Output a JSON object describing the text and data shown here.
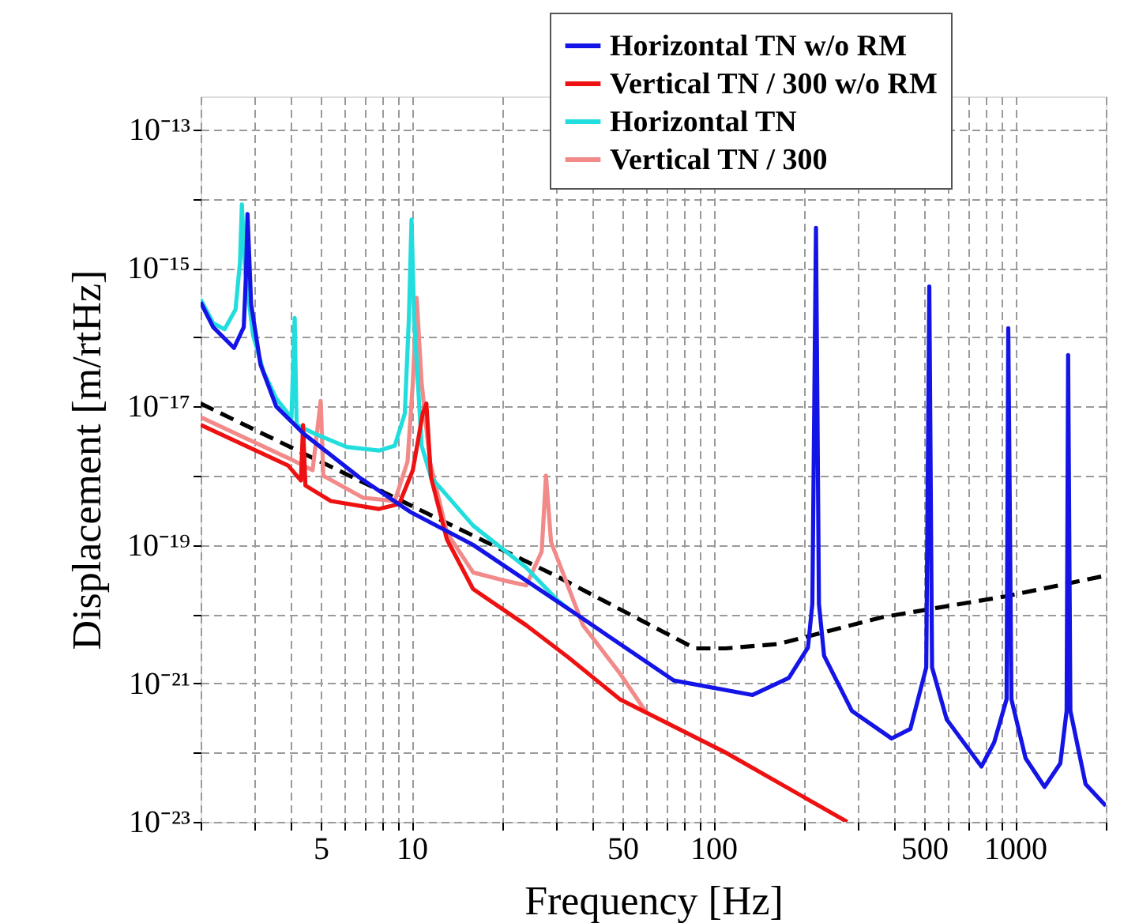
{
  "chart_data": {
    "type": "line",
    "xlabel": "Frequency [Hz]",
    "ylabel": "Displacement [m/rtHz]",
    "log": "xy",
    "grid": true,
    "legend": "top right",
    "xlim": [
      2,
      2000
    ],
    "ylim": [
      1e-23,
      3e-13
    ],
    "xticks": [
      {
        "value": 2,
        "label": null
      },
      {
        "value": 3,
        "label": null
      },
      {
        "value": 4,
        "label": null
      },
      5,
      {
        "value": 6,
        "label": null
      },
      {
        "value": 7,
        "label": null
      },
      {
        "value": 8,
        "label": null
      },
      {
        "value": 9,
        "label": null
      },
      10,
      {
        "value": 20,
        "label": null
      },
      {
        "value": 30,
        "label": null
      },
      {
        "value": 40,
        "label": null
      },
      50,
      {
        "value": 60,
        "label": null
      },
      {
        "value": 70,
        "label": null
      },
      {
        "value": 80,
        "label": null
      },
      {
        "value": 90,
        "label": null
      },
      100,
      {
        "value": 200,
        "label": null
      },
      {
        "value": 300,
        "label": null
      },
      {
        "value": 400,
        "label": null
      },
      500,
      {
        "value": 600,
        "label": null
      },
      {
        "value": 700,
        "label": null
      },
      {
        "value": 800,
        "label": null
      },
      {
        "value": 900,
        "label": null
      },
      1000,
      {
        "value": 2000,
        "label": null
      }
    ],
    "yticks": [
      {
        "value": 1e-23,
        "label": "10⁻²³"
      },
      {
        "value": 1e-22,
        "label": null
      },
      {
        "value": 1e-21,
        "label": "10⁻²¹"
      },
      {
        "value": 1e-20,
        "label": null
      },
      {
        "value": 1e-19,
        "label": "10⁻¹⁹"
      },
      {
        "value": 1e-18,
        "label": null
      },
      {
        "value": 1e-17,
        "label": "10⁻¹⁷"
      },
      {
        "value": 1e-16,
        "label": null
      },
      {
        "value": 1e-15,
        "label": "10⁻¹⁵"
      },
      {
        "value": 1e-14,
        "label": null
      },
      {
        "value": 1e-13,
        "label": "10⁻¹³"
      }
    ],
    "series": [
      {
        "name": "Horizontal TN w/o RM",
        "color": "#1414e6",
        "x": [
          2,
          2.2,
          2.58,
          2.78,
          2.83,
          2.86,
          2.94,
          3.16,
          3.56,
          4.4,
          6.7,
          9.9,
          16,
          33,
          74,
          135,
          178,
          206,
          213,
          219,
          224,
          233,
          288,
          390,
          450,
          508,
          520,
          531,
          594,
          774,
          853,
          938,
          950,
          973,
          1084,
          1253,
          1413,
          1483,
          1500,
          1526,
          1714,
          2000
        ],
        "values": [
          3.2e-16,
          1.4e-16,
          7e-17,
          1.4e-16,
          9e-16,
          6e-15,
          3e-16,
          4e-17,
          1e-17,
          4e-18,
          9.5e-19,
          3e-19,
          1e-19,
          1.2e-20,
          1.1e-21,
          6.8e-22,
          1.2e-21,
          3.3e-21,
          1.4e-20,
          3.8e-15,
          1.4e-20,
          2.5e-21,
          4e-22,
          1.6e-22,
          2.2e-22,
          1.7e-21,
          5.4e-16,
          1.7e-21,
          3e-22,
          6.3e-23,
          1.4e-22,
          5.9e-22,
          1.35e-16,
          5.9e-22,
          8.3e-23,
          3.2e-23,
          7e-23,
          4e-22,
          5.5e-17,
          4e-22,
          3.5e-23,
          1.7e-23
        ]
      },
      {
        "name": "Vertical TN / 300 w/o RM",
        "color": "#ee1111",
        "x": [
          2,
          3.9,
          4.3,
          4.37,
          4.45,
          5.4,
          7.8,
          9.1,
          10.1,
          10.9,
          11.2,
          11.6,
          13.1,
          16,
          24,
          33,
          49,
          110,
          278
        ],
        "values": [
          5.4e-18,
          1.4e-18,
          8.5e-19,
          5.4e-18,
          7.2e-19,
          4.3e-19,
          3.3e-19,
          3.9e-19,
          1.2e-18,
          8e-18,
          1.1e-17,
          9.5e-19,
          1.2e-19,
          2.3e-20,
          6.9e-21,
          2.4e-21,
          5.9e-22,
          1e-22,
          1e-23
        ]
      },
      {
        "name": "Horizontal TN",
        "color": "#22dddd",
        "x": [
          2,
          2.2,
          2.4,
          2.61,
          2.7,
          2.74,
          2.81,
          2.98,
          3.23,
          3.56,
          4.0,
          4.1,
          4.16,
          4.8,
          6.1,
          7.8,
          8.8,
          9.5,
          9.8,
          10,
          10.2,
          10.8,
          11.6,
          16,
          24,
          30.4,
          33
        ],
        "values": [
          3.5e-16,
          1.6e-16,
          1.3e-16,
          2.5e-16,
          1.2e-15,
          8.3e-15,
          9e-16,
          1.1e-16,
          3.2e-17,
          1.3e-17,
          6.8e-18,
          1.9e-16,
          5.4e-18,
          4e-18,
          2.6e-18,
          2.3e-18,
          2.7e-18,
          7.9e-18,
          1.9e-16,
          5e-15,
          1.9e-16,
          2.7e-18,
          9.5e-19,
          1.9e-19,
          4.7e-20,
          1.6e-20,
          1.2e-20
        ]
      },
      {
        "name": "Vertical TN / 300",
        "color": "#f28a8a",
        "x": [
          2,
          3.9,
          4.7,
          5.0,
          5.1,
          6.9,
          8.8,
          9.7,
          10.1,
          10.4,
          10.8,
          11.5,
          13.1,
          16,
          20,
          24,
          27,
          27.9,
          29,
          37,
          49,
          60
        ],
        "values": [
          7e-18,
          1.8e-18,
          1.2e-18,
          1.2e-17,
          1e-18,
          4.8e-19,
          4.3e-19,
          1.6e-18,
          2.2e-17,
          3.7e-16,
          2.2e-17,
          1.6e-18,
          1.5e-19,
          4e-20,
          3.1e-20,
          2.6e-20,
          8e-20,
          1e-18,
          1.1e-19,
          6.9e-21,
          1.4e-21,
          3.8e-22
        ]
      },
      {
        "color": "#000000",
        "line_style": "dashed",
        "x": [
          2,
          30,
          68,
          87,
          110,
          164,
          366,
          927,
          2000
        ],
        "values": [
          1.1e-17,
          3.6e-20,
          5.6e-21,
          3.2e-21,
          3.2e-21,
          3.7e-21,
          9.1e-21,
          1.8e-20,
          3.6e-20
        ]
      }
    ]
  }
}
